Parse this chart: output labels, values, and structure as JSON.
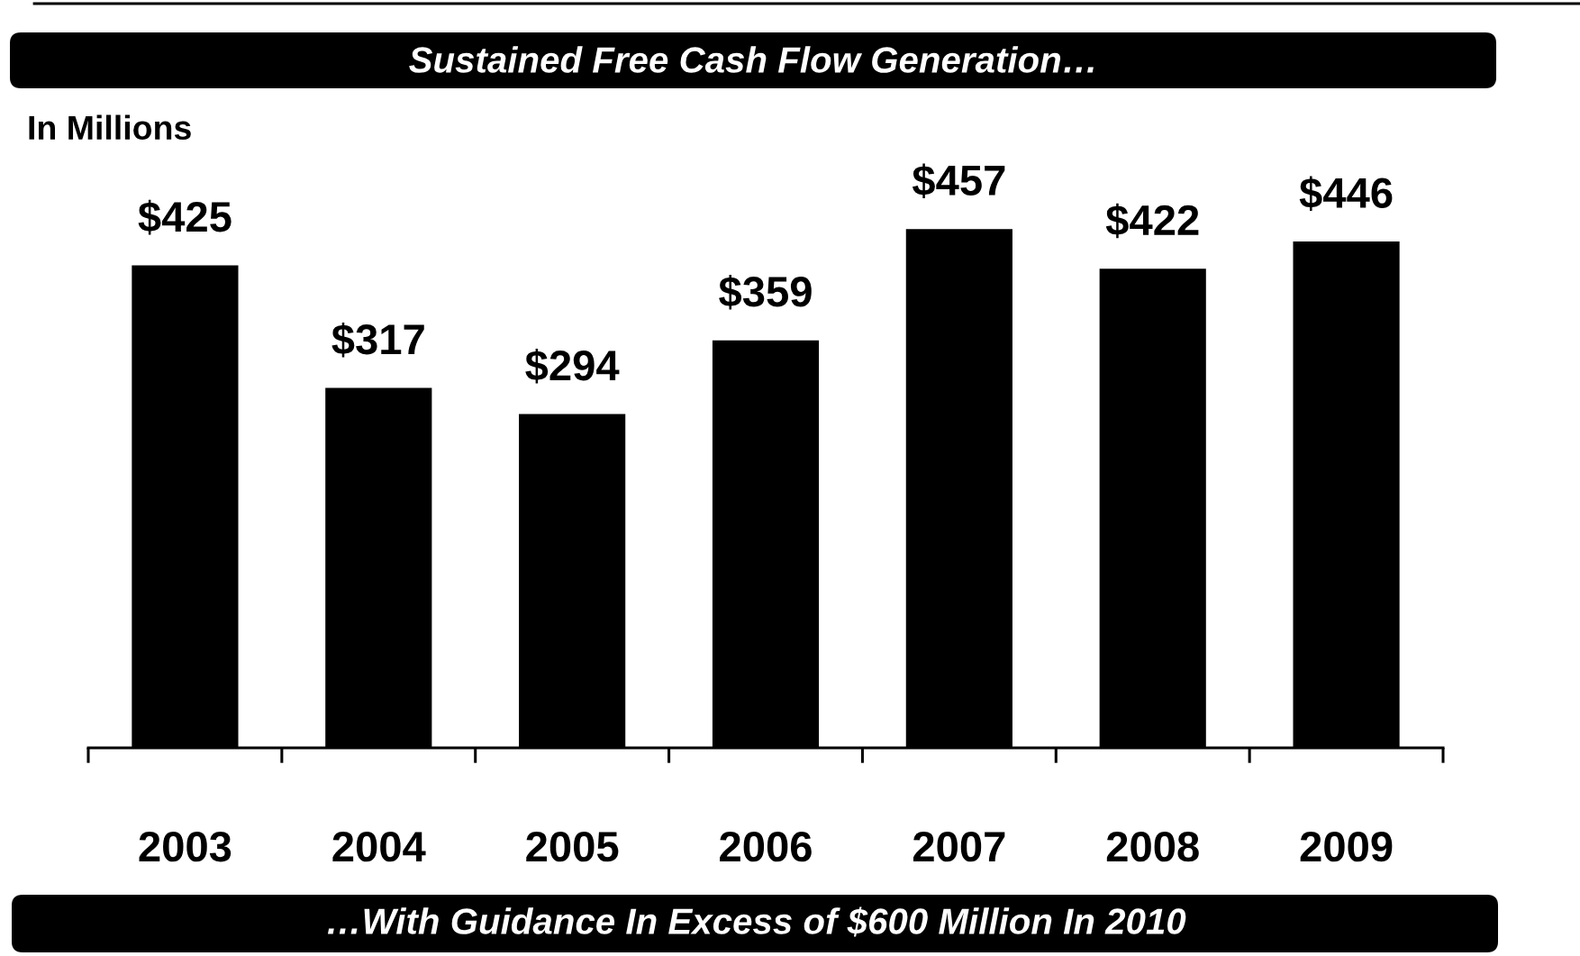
{
  "chart_data": {
    "type": "bar",
    "title": "Sustained Free Cash Flow Generation…",
    "ylabel": "In Millions",
    "categories": [
      "2003",
      "2004",
      "2005",
      "2006",
      "2007",
      "2008",
      "2009"
    ],
    "values": [
      425,
      317,
      294,
      359,
      457,
      422,
      446
    ],
    "color": "#000000",
    "value_labels": [
      "$425",
      "$317",
      "$294",
      "$359",
      "$457",
      "$422",
      "$446"
    ],
    "annotations": [
      "…With Guidance In Excess of $600 Million In 2010"
    ],
    "grid": false
  }
}
